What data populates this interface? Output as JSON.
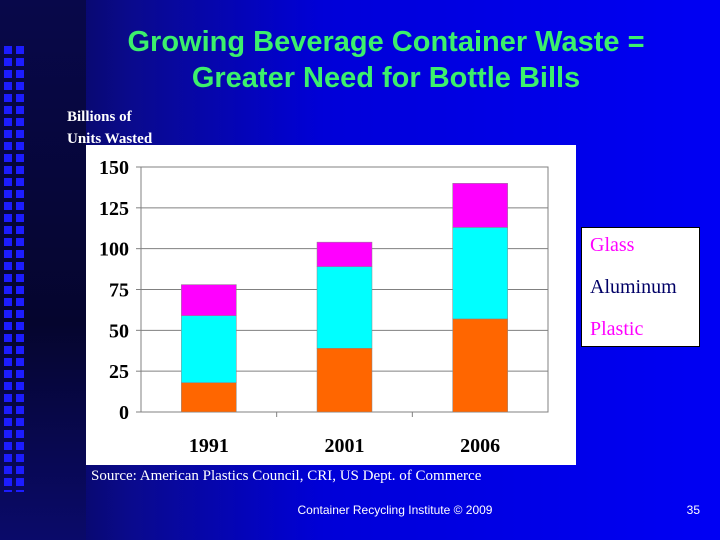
{
  "slide": {
    "title_line1": "Growing Beverage Container Waste =",
    "title_line2": "Greater Need for Bottle Bills",
    "ylabel_line1": "Billions of",
    "ylabel_line2": "Units Wasted",
    "source": "Source: American Plastics Council, CRI, US Dept. of Commerce",
    "footer": "Container Recycling Institute © 2009",
    "page_number": "35"
  },
  "colors": {
    "title": "#3cf06c",
    "plastic": "#ff6600",
    "aluminum": "#00ffff",
    "glass": "#ff00ff"
  },
  "chart_data": {
    "type": "bar",
    "stacked": true,
    "title": "Growing Beverage Container Waste = Greater Need for Bottle Bills",
    "xlabel": "",
    "ylabel": "Billions of Units Wasted",
    "categories": [
      "1991",
      "2001",
      "2006"
    ],
    "ylim": [
      0,
      150
    ],
    "yticks": [
      "0",
      "25",
      "50",
      "75",
      "100",
      "125",
      "150"
    ],
    "legend_position": "right",
    "series": [
      {
        "name": "Plastic",
        "values": [
          18,
          39,
          57
        ],
        "color": "#ff6600"
      },
      {
        "name": "Aluminum",
        "values": [
          41,
          50,
          56
        ],
        "color": "#00ffff"
      },
      {
        "name": "Glass",
        "values": [
          19,
          15,
          27
        ],
        "color": "#ff00ff"
      }
    ],
    "legend": [
      "Glass",
      "Aluminum",
      "Plastic"
    ]
  }
}
